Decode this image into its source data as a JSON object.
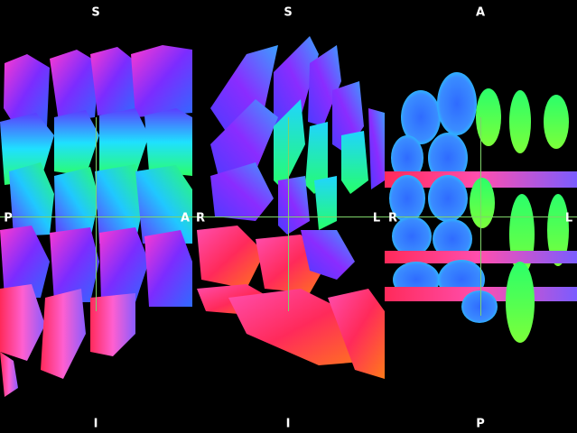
{
  "views": [
    {
      "id": "sagittal",
      "labels": {
        "top": "S",
        "bottom": "I",
        "left": "P",
        "right": "A"
      }
    },
    {
      "id": "coronal",
      "labels": {
        "top": "S",
        "bottom": "I",
        "left": "R",
        "right": "L"
      }
    },
    {
      "id": "axial",
      "labels": {
        "top": "A",
        "bottom": "P",
        "left": "R",
        "right": "L"
      }
    }
  ],
  "colors": {
    "background": "#000000",
    "crosshair": "#7fd36a",
    "label": "#ffffff",
    "glyph_palette": [
      "#ff2a6d",
      "#ff4fb0",
      "#8a2cff",
      "#3a5bff",
      "#20d4ff",
      "#26ff6a",
      "#ff7a1a"
    ]
  }
}
